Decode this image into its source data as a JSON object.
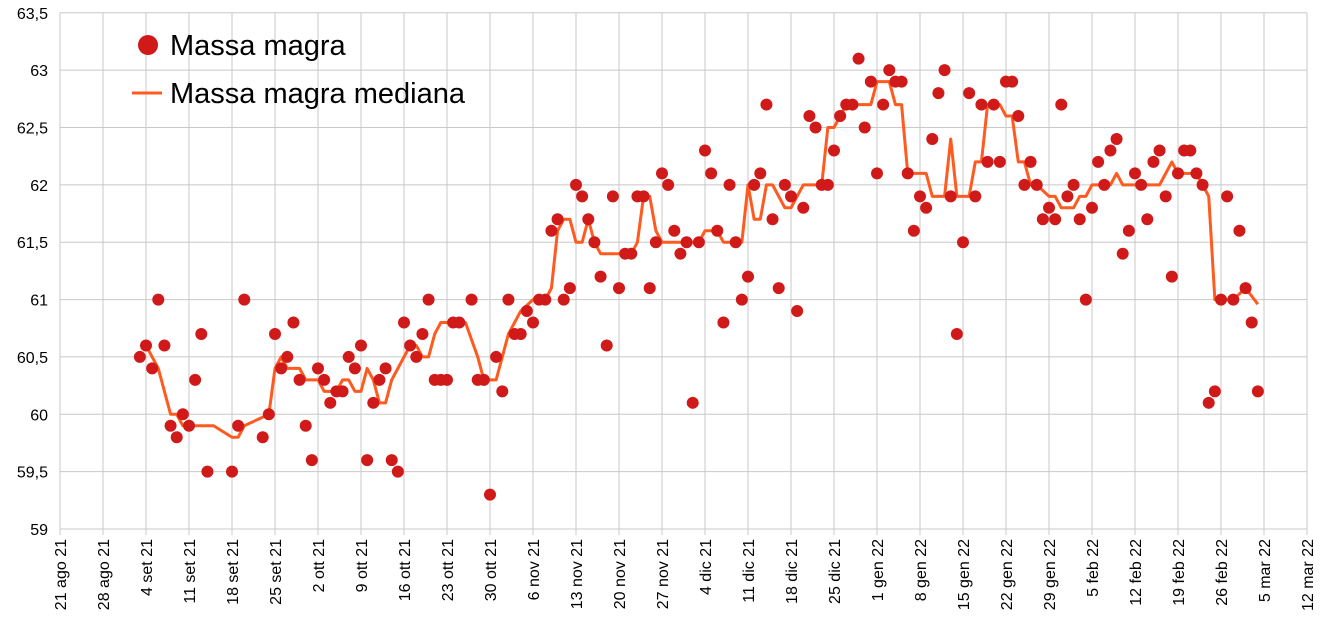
{
  "chart_data": {
    "type": "scatter+line",
    "title": "",
    "xlabel": "",
    "ylabel": "",
    "x_unit": "days since 21 ago 21",
    "ylim": [
      59,
      63.5
    ],
    "xlim": [
      0,
      203
    ],
    "grid": true,
    "legend_placement": "top-left",
    "yticks": [
      {
        "value": 59,
        "label": "59"
      },
      {
        "value": 59.5,
        "label": "59,5"
      },
      {
        "value": 60,
        "label": "60"
      },
      {
        "value": 60.5,
        "label": "60,5"
      },
      {
        "value": 61,
        "label": "61"
      },
      {
        "value": 61.5,
        "label": "61,5"
      },
      {
        "value": 62,
        "label": "62"
      },
      {
        "value": 62.5,
        "label": "62,5"
      },
      {
        "value": 63,
        "label": "63"
      },
      {
        "value": 63.5,
        "label": "63,5"
      }
    ],
    "xticks": [
      "21 ago 21",
      "28 ago 21",
      "4 set 21",
      "11 set 21",
      "18 set 21",
      "25 set 21",
      "2 ott 21",
      "9 ott 21",
      "16 ott 21",
      "23 ott 21",
      "30 ott 21",
      "6 nov 21",
      "13 nov 21",
      "20 nov 21",
      "27 nov 21",
      "4 dic 21",
      "11 dic 21",
      "18 dic 21",
      "25 dic 21",
      "1 gen 22",
      "8 gen 22",
      "15 gen 22",
      "22 gen 22",
      "29 gen 22",
      "5 feb 22",
      "12 feb 22",
      "19 feb 22",
      "26 feb 22",
      "5 mar 22",
      "12 mar 22"
    ],
    "series": [
      {
        "name": "Massa magra",
        "kind": "scatter",
        "color": "#d01a1a",
        "points": [
          [
            13,
            60.5
          ],
          [
            14,
            60.6
          ],
          [
            15,
            60.4
          ],
          [
            16,
            61.0
          ],
          [
            17,
            60.6
          ],
          [
            18,
            59.9
          ],
          [
            19,
            59.8
          ],
          [
            20,
            60.0
          ],
          [
            21,
            59.9
          ],
          [
            22,
            60.3
          ],
          [
            23,
            60.7
          ],
          [
            24,
            59.5
          ],
          [
            28,
            59.5
          ],
          [
            29,
            59.9
          ],
          [
            30,
            61.0
          ],
          [
            33,
            59.8
          ],
          [
            34,
            60.0
          ],
          [
            35,
            60.7
          ],
          [
            36,
            60.4
          ],
          [
            37,
            60.5
          ],
          [
            38,
            60.8
          ],
          [
            39,
            60.3
          ],
          [
            40,
            59.9
          ],
          [
            41,
            59.6
          ],
          [
            42,
            60.4
          ],
          [
            43,
            60.3
          ],
          [
            44,
            60.1
          ],
          [
            45,
            60.2
          ],
          [
            46,
            60.2
          ],
          [
            47,
            60.5
          ],
          [
            48,
            60.4
          ],
          [
            49,
            60.6
          ],
          [
            50,
            59.6
          ],
          [
            51,
            60.1
          ],
          [
            52,
            60.3
          ],
          [
            53,
            60.4
          ],
          [
            54,
            59.6
          ],
          [
            55,
            59.5
          ],
          [
            56,
            60.8
          ],
          [
            57,
            60.6
          ],
          [
            58,
            60.5
          ],
          [
            59,
            60.7
          ],
          [
            60,
            61.0
          ],
          [
            61,
            60.3
          ],
          [
            62,
            60.3
          ],
          [
            63,
            60.3
          ],
          [
            64,
            60.8
          ],
          [
            65,
            60.8
          ],
          [
            67,
            61.0
          ],
          [
            68,
            60.3
          ],
          [
            69,
            60.3
          ],
          [
            70,
            59.3
          ],
          [
            71,
            60.5
          ],
          [
            72,
            60.2
          ],
          [
            73,
            61.0
          ],
          [
            74,
            60.7
          ],
          [
            75,
            60.7
          ],
          [
            76,
            60.9
          ],
          [
            77,
            60.8
          ],
          [
            78,
            61.0
          ],
          [
            79,
            61.0
          ],
          [
            80,
            61.6
          ],
          [
            81,
            61.7
          ],
          [
            82,
            61.0
          ],
          [
            83,
            61.1
          ],
          [
            84,
            62.0
          ],
          [
            85,
            61.9
          ],
          [
            86,
            61.7
          ],
          [
            87,
            61.5
          ],
          [
            88,
            61.2
          ],
          [
            89,
            60.6
          ],
          [
            90,
            61.9
          ],
          [
            91,
            61.1
          ],
          [
            92,
            61.4
          ],
          [
            93,
            61.4
          ],
          [
            94,
            61.9
          ],
          [
            95,
            61.9
          ],
          [
            96,
            61.1
          ],
          [
            97,
            61.5
          ],
          [
            98,
            62.1
          ],
          [
            99,
            62.0
          ],
          [
            100,
            61.6
          ],
          [
            101,
            61.4
          ],
          [
            102,
            61.5
          ],
          [
            103,
            60.1
          ],
          [
            104,
            61.5
          ],
          [
            105,
            62.3
          ],
          [
            106,
            62.1
          ],
          [
            107,
            61.6
          ],
          [
            108,
            60.8
          ],
          [
            109,
            62.0
          ],
          [
            110,
            61.5
          ],
          [
            111,
            61.0
          ],
          [
            112,
            61.2
          ],
          [
            113,
            62.0
          ],
          [
            114,
            62.1
          ],
          [
            115,
            62.7
          ],
          [
            116,
            61.7
          ],
          [
            117,
            61.1
          ],
          [
            118,
            62.0
          ],
          [
            119,
            61.9
          ],
          [
            120,
            60.9
          ],
          [
            121,
            61.8
          ],
          [
            122,
            62.6
          ],
          [
            123,
            62.5
          ],
          [
            124,
            62.0
          ],
          [
            125,
            62.0
          ],
          [
            126,
            62.3
          ],
          [
            127,
            62.6
          ],
          [
            128,
            62.7
          ],
          [
            129,
            62.7
          ],
          [
            130,
            63.1
          ],
          [
            131,
            62.5
          ],
          [
            132,
            62.9
          ],
          [
            133,
            62.1
          ],
          [
            134,
            62.7
          ],
          [
            135,
            63.0
          ],
          [
            136,
            62.9
          ],
          [
            137,
            62.9
          ],
          [
            138,
            62.1
          ],
          [
            139,
            61.6
          ],
          [
            140,
            61.9
          ],
          [
            141,
            61.8
          ],
          [
            142,
            62.4
          ],
          [
            143,
            62.8
          ],
          [
            144,
            63.0
          ],
          [
            145,
            61.9
          ],
          [
            146,
            60.7
          ],
          [
            147,
            61.5
          ],
          [
            148,
            62.8
          ],
          [
            149,
            61.9
          ],
          [
            150,
            62.7
          ],
          [
            151,
            62.2
          ],
          [
            152,
            62.7
          ],
          [
            153,
            62.2
          ],
          [
            154,
            62.9
          ],
          [
            155,
            62.9
          ],
          [
            156,
            62.6
          ],
          [
            157,
            62.0
          ],
          [
            158,
            62.2
          ],
          [
            159,
            62.0
          ],
          [
            160,
            61.7
          ],
          [
            161,
            61.8
          ],
          [
            162,
            61.7
          ],
          [
            163,
            62.7
          ],
          [
            164,
            61.9
          ],
          [
            165,
            62.0
          ],
          [
            166,
            61.7
          ],
          [
            167,
            61.0
          ],
          [
            168,
            61.8
          ],
          [
            169,
            62.2
          ],
          [
            170,
            62.0
          ],
          [
            171,
            62.3
          ],
          [
            172,
            62.4
          ],
          [
            173,
            61.4
          ],
          [
            174,
            61.6
          ],
          [
            175,
            62.1
          ],
          [
            176,
            62.0
          ],
          [
            177,
            61.7
          ],
          [
            178,
            62.2
          ],
          [
            179,
            62.3
          ],
          [
            180,
            61.9
          ],
          [
            181,
            61.2
          ],
          [
            182,
            62.1
          ],
          [
            183,
            62.3
          ],
          [
            184,
            62.3
          ],
          [
            185,
            62.1
          ],
          [
            186,
            62.0
          ],
          [
            187,
            60.1
          ],
          [
            188,
            60.2
          ],
          [
            189,
            61.0
          ],
          [
            190,
            61.9
          ],
          [
            191,
            61.0
          ],
          [
            192,
            61.6
          ],
          [
            193,
            61.1
          ],
          [
            194,
            60.8
          ],
          [
            195,
            60.2
          ]
        ]
      },
      {
        "name": "Massa magra mediana",
        "kind": "line",
        "color": "#ff5a1f",
        "points": [
          [
            14,
            60.6
          ],
          [
            16,
            60.4
          ],
          [
            18,
            60.0
          ],
          [
            19,
            60.0
          ],
          [
            20,
            59.9
          ],
          [
            25,
            59.9
          ],
          [
            28,
            59.8
          ],
          [
            29,
            59.8
          ],
          [
            30,
            59.9
          ],
          [
            34,
            60.0
          ],
          [
            35,
            60.4
          ],
          [
            36,
            60.5
          ],
          [
            37,
            60.4
          ],
          [
            39,
            60.4
          ],
          [
            40,
            60.3
          ],
          [
            42,
            60.3
          ],
          [
            43,
            60.2
          ],
          [
            45,
            60.2
          ],
          [
            46,
            60.3
          ],
          [
            47,
            60.3
          ],
          [
            48,
            60.2
          ],
          [
            49,
            60.2
          ],
          [
            50,
            60.4
          ],
          [
            51,
            60.3
          ],
          [
            52,
            60.1
          ],
          [
            53,
            60.1
          ],
          [
            54,
            60.3
          ],
          [
            57,
            60.6
          ],
          [
            58,
            60.6
          ],
          [
            59,
            60.5
          ],
          [
            60,
            60.5
          ],
          [
            61,
            60.7
          ],
          [
            62,
            60.8
          ],
          [
            66,
            60.8
          ],
          [
            68,
            60.5
          ],
          [
            69,
            60.3
          ],
          [
            71,
            60.3
          ],
          [
            72,
            60.5
          ],
          [
            73,
            60.7
          ],
          [
            75,
            60.9
          ],
          [
            77,
            61.0
          ],
          [
            79,
            61.0
          ],
          [
            80,
            61.1
          ],
          [
            81,
            61.6
          ],
          [
            82,
            61.7
          ],
          [
            83,
            61.7
          ],
          [
            84,
            61.5
          ],
          [
            85,
            61.5
          ],
          [
            86,
            61.7
          ],
          [
            87,
            61.5
          ],
          [
            88,
            61.4
          ],
          [
            93,
            61.4
          ],
          [
            94,
            61.5
          ],
          [
            95,
            61.9
          ],
          [
            96,
            61.9
          ],
          [
            97,
            61.6
          ],
          [
            98,
            61.5
          ],
          [
            104,
            61.5
          ],
          [
            105,
            61.6
          ],
          [
            107,
            61.6
          ],
          [
            108,
            61.5
          ],
          [
            111,
            61.5
          ],
          [
            112,
            62.0
          ],
          [
            113,
            61.7
          ],
          [
            114,
            61.7
          ],
          [
            115,
            62.0
          ],
          [
            116,
            62.0
          ],
          [
            118,
            61.8
          ],
          [
            119,
            61.8
          ],
          [
            120,
            61.9
          ],
          [
            121,
            62.0
          ],
          [
            124,
            62.0
          ],
          [
            125,
            62.5
          ],
          [
            126,
            62.5
          ],
          [
            127,
            62.6
          ],
          [
            128,
            62.7
          ],
          [
            132,
            62.7
          ],
          [
            133,
            62.9
          ],
          [
            135,
            62.9
          ],
          [
            136,
            62.7
          ],
          [
            137,
            62.7
          ],
          [
            138,
            62.1
          ],
          [
            141,
            62.1
          ],
          [
            142,
            61.9
          ],
          [
            144,
            61.9
          ],
          [
            145,
            62.4
          ],
          [
            146,
            61.9
          ],
          [
            148,
            61.9
          ],
          [
            149,
            62.2
          ],
          [
            150,
            62.2
          ],
          [
            151,
            62.7
          ],
          [
            153,
            62.7
          ],
          [
            154,
            62.6
          ],
          [
            155,
            62.6
          ],
          [
            156,
            62.2
          ],
          [
            157,
            62.2
          ],
          [
            158,
            62.0
          ],
          [
            159,
            62.0
          ],
          [
            161,
            61.9
          ],
          [
            162,
            61.9
          ],
          [
            163,
            61.8
          ],
          [
            165,
            61.8
          ],
          [
            166,
            61.9
          ],
          [
            167,
            61.9
          ],
          [
            168,
            62.0
          ],
          [
            171,
            62.0
          ],
          [
            172,
            62.1
          ],
          [
            173,
            62.0
          ],
          [
            179,
            62.0
          ],
          [
            181,
            62.2
          ],
          [
            182,
            62.1
          ],
          [
            185,
            62.1
          ],
          [
            186,
            62.0
          ],
          [
            187,
            61.9
          ],
          [
            188,
            61.0
          ],
          [
            191,
            61.0
          ],
          [
            193,
            61.1
          ],
          [
            195,
            60.96
          ]
        ]
      }
    ]
  }
}
